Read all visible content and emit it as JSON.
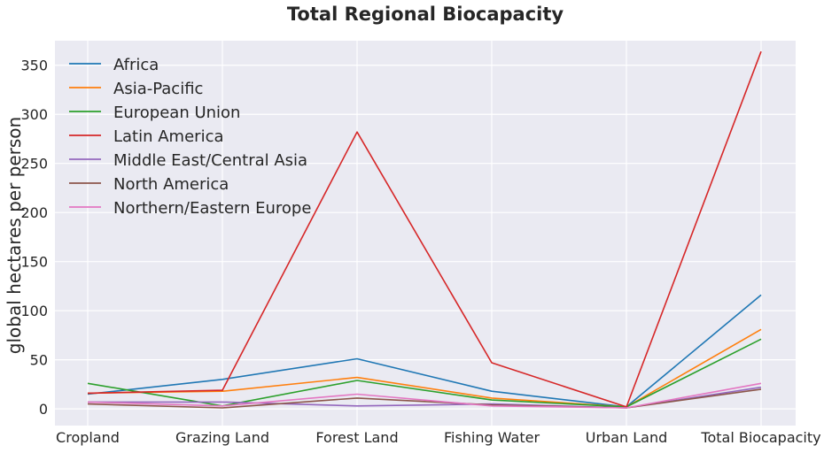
{
  "chart_data": {
    "type": "line",
    "title": "Total Regional Biocapacity",
    "xlabel": "",
    "ylabel": "global hectares per person",
    "categories": [
      "Cropland",
      "Grazing Land",
      "Forest Land",
      "Fishing Water",
      "Urban Land",
      "Total Biocapacity"
    ],
    "ylim": [
      -17,
      375
    ],
    "yticks": [
      0,
      50,
      100,
      150,
      200,
      250,
      300,
      350
    ],
    "grid": true,
    "legend_position": "top-left",
    "background": "#eaeaf2",
    "series": [
      {
        "name": "Africa",
        "color": "#1f77b4",
        "values": [
          15,
          30,
          51,
          18,
          2,
          116
        ]
      },
      {
        "name": "Asia-Pacific",
        "color": "#ff7f0e",
        "values": [
          16,
          18,
          32,
          11,
          2,
          81
        ]
      },
      {
        "name": "European Union",
        "color": "#2ca02c",
        "values": [
          26,
          3,
          29,
          9,
          2,
          71
        ]
      },
      {
        "name": "Latin America",
        "color": "#d62728",
        "values": [
          16,
          19,
          282,
          47,
          2,
          364
        ]
      },
      {
        "name": "Middle East/Central Asia",
        "color": "#9467bd",
        "values": [
          7,
          7,
          3,
          5,
          1,
          22
        ]
      },
      {
        "name": "North America",
        "color": "#8c564b",
        "values": [
          5,
          1,
          11,
          4,
          1,
          20
        ]
      },
      {
        "name": "Northern/Eastern Europe",
        "color": "#e377c2",
        "values": [
          7,
          3,
          15,
          3,
          1,
          26
        ]
      }
    ]
  }
}
